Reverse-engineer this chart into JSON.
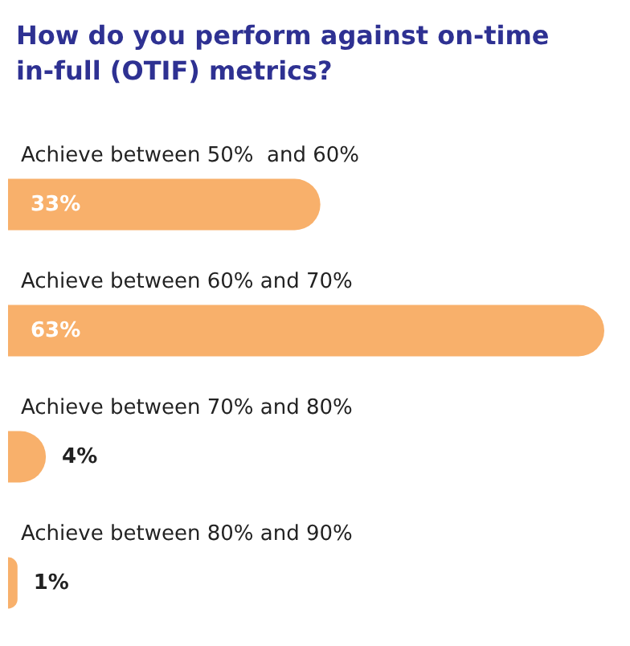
{
  "chart_data": {
    "type": "bar",
    "orientation": "horizontal",
    "title": "How do you perform against on-time in-full (OTIF) metrics?",
    "categories": [
      "Achieve between 50%  and 60%",
      "Achieve between 60% and 70%",
      "Achieve between 70% and 80%",
      "Achieve between 80% and 90%"
    ],
    "values": [
      33,
      63,
      4,
      1
    ],
    "value_labels": [
      "33%",
      "63%",
      "4%",
      "1%"
    ],
    "color": "#f8b06b"
  }
}
